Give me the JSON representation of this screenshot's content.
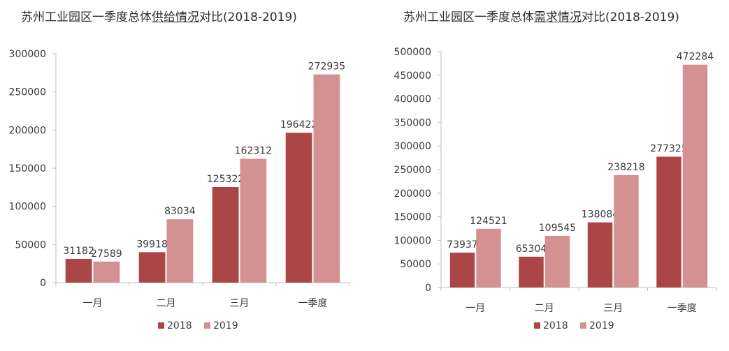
{
  "chart_data": [
    {
      "type": "bar",
      "title_parts": [
        "苏州工业园区一季度总体",
        "供给情况",
        "对比(2018-2019)"
      ],
      "categories": [
        "一月",
        "二月",
        "三月",
        "一季度"
      ],
      "series": [
        {
          "name": "2018",
          "values": [
            31182,
            39918,
            125322,
            196422
          ]
        },
        {
          "name": "2019",
          "values": [
            27589,
            83034,
            162312,
            272935
          ]
        }
      ],
      "ylim": [
        0,
        300000
      ],
      "yticks": [
        0,
        50000,
        100000,
        150000,
        200000,
        250000,
        300000
      ],
      "grid": false,
      "legend": "bottom"
    },
    {
      "type": "bar",
      "title_parts": [
        "苏州工业园区一季度总体",
        "需求情况",
        "对比(2018-2019)"
      ],
      "categories": [
        "一月",
        "二月",
        "三月",
        "一季度"
      ],
      "series": [
        {
          "name": "2018",
          "values": [
            73937,
            65304,
            138084,
            277325
          ]
        },
        {
          "name": "2019",
          "values": [
            124521,
            109545,
            238218,
            472284
          ]
        }
      ],
      "ylim": [
        0,
        500000
      ],
      "yticks": [
        0,
        50000,
        100000,
        150000,
        200000,
        250000,
        300000,
        350000,
        400000,
        450000,
        500000
      ],
      "grid": false,
      "legend": "bottom"
    }
  ],
  "colors": {
    "s2018": "#ab4646",
    "s2019": "#d49191",
    "axis": "#bfbfbf",
    "text": "#3a3a3a"
  }
}
